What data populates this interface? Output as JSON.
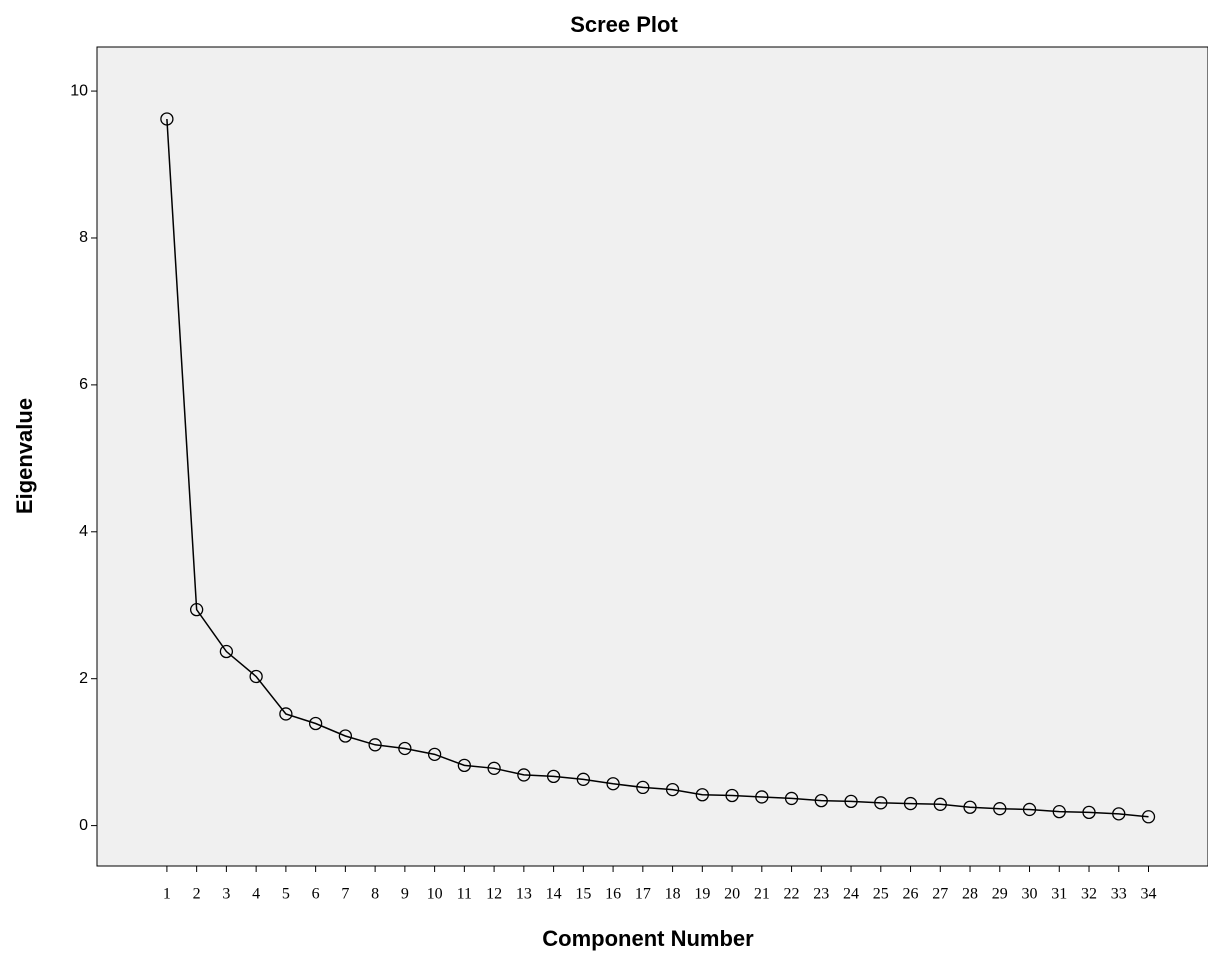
{
  "chart_data": {
    "type": "line",
    "title": "Scree Plot",
    "x_label": "Component Number",
    "y_label": "Eigenvalue",
    "x": [
      1,
      2,
      3,
      4,
      5,
      6,
      7,
      8,
      9,
      10,
      11,
      12,
      13,
      14,
      15,
      16,
      17,
      18,
      19,
      20,
      21,
      22,
      23,
      24,
      25,
      26,
      27,
      28,
      29,
      30,
      31,
      32,
      33,
      34
    ],
    "series": [
      {
        "name": "Eigenvalue",
        "color": "#000000",
        "values": [
          9.62,
          2.94,
          2.37,
          2.03,
          1.52,
          1.39,
          1.22,
          1.1,
          1.05,
          0.97,
          0.82,
          0.78,
          0.69,
          0.67,
          0.63,
          0.57,
          0.52,
          0.49,
          0.42,
          0.41,
          0.39,
          0.37,
          0.34,
          0.33,
          0.31,
          0.3,
          0.29,
          0.25,
          0.23,
          0.22,
          0.19,
          0.18,
          0.16,
          0.12
        ]
      }
    ],
    "xlim": [
      -1.35,
      36
    ],
    "ylim": [
      -0.55,
      10.6
    ],
    "xticks": [
      1,
      2,
      3,
      4,
      5,
      6,
      7,
      8,
      9,
      10,
      11,
      12,
      13,
      14,
      15,
      16,
      17,
      18,
      19,
      20,
      21,
      22,
      23,
      24,
      25,
      26,
      27,
      28,
      29,
      30,
      31,
      32,
      33,
      34
    ],
    "yticks": [
      0,
      2,
      4,
      6,
      8,
      10
    ],
    "grid": false
  }
}
